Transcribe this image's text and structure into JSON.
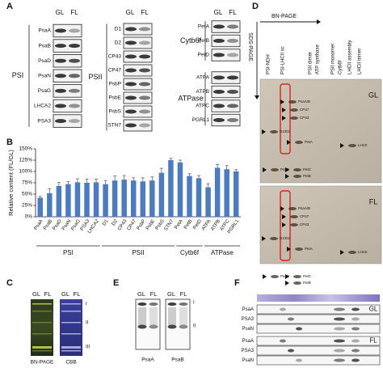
{
  "panel_a": {
    "label": "A",
    "columns": [
      {
        "header": [
          "GL",
          "FL"
        ],
        "groups": [
          {
            "name": "PSI",
            "rows": [
              "PsaA",
              "PsaB",
              "PsaD",
              "PsaN",
              "PsaG",
              "LHCA2",
              "PSA3"
            ]
          }
        ]
      },
      {
        "header": [
          "GL",
          "FL"
        ],
        "groups": [
          {
            "name": "PSII",
            "rows": [
              "D1",
              "D2",
              "CP43",
              "CP47",
              "PsbP",
              "PsbE",
              "PsbS",
              "STN7"
            ]
          }
        ]
      },
      {
        "header": [
          "GL",
          "FL"
        ],
        "groups": [
          {
            "name": "Cytb6f",
            "rows": [
              "PetA",
              "PetB",
              "PetD"
            ]
          },
          {
            "name": "ATPase",
            "rows": [
              "ATPA",
              "ATPB",
              "ATPC",
              "PGRL1"
            ]
          }
        ]
      }
    ]
  },
  "chart_data": {
    "type": "bar",
    "panel_label": "B",
    "y_label": "Relative content (FL/GL)",
    "categories": [
      "PsaA",
      "PsaB",
      "PsaD",
      "PsaN",
      "PsaG",
      "PSA3",
      "LHCA2",
      "D1",
      "D2",
      "CP43",
      "CP47",
      "PsbP",
      "PsbE",
      "PsbS",
      "STN7",
      "PetA",
      "PetB",
      "PetD",
      "ATPA",
      "ATPB",
      "ATPC",
      "PGRL1"
    ],
    "values": [
      42,
      52,
      68,
      72,
      76,
      75,
      76,
      72,
      80,
      82,
      80,
      78,
      80,
      97,
      125,
      120,
      90,
      85,
      65,
      108,
      105,
      100
    ],
    "errors": [
      3,
      10,
      8,
      6,
      8,
      8,
      7,
      8,
      10,
      9,
      6,
      8,
      8,
      10,
      4,
      5,
      5,
      6,
      8,
      7,
      8,
      4
    ],
    "color": "#4a7bc4",
    "ylim": [
      0,
      150
    ],
    "yticks": [
      {
        "value": 0,
        "label": "0%"
      },
      {
        "value": 25,
        "label": "25%"
      },
      {
        "value": 50,
        "label": "50%"
      },
      {
        "value": 75,
        "label": "75%"
      },
      {
        "value": 100,
        "label": "100%"
      },
      {
        "value": 125,
        "label": "125%"
      },
      {
        "value": 150,
        "label": "150%"
      }
    ],
    "groups": [
      "PSI",
      "PSII",
      "Cytb6f",
      "ATPase"
    ]
  },
  "panel_c": {
    "label": "C",
    "lanes": [
      {
        "header": [
          "GL",
          "FL"
        ],
        "caption": "BN-PAGE"
      },
      {
        "header": [
          "GL",
          "FL"
        ],
        "caption": "CBB"
      }
    ],
    "bands": [
      "I",
      "II",
      "III"
    ]
  },
  "panel_d": {
    "label": "D",
    "x_axis": "BN-PAGE",
    "y_axis": "SDS-PAGE",
    "complexes": [
      "PSI-NDH",
      "PSI-LHCII sc",
      "PSII dimer",
      "ATP synthase",
      "PSII monomer",
      "Cytb6f",
      "LHCII assembly",
      "LHCII trimer"
    ],
    "gels": [
      {
        "name": "GL",
        "spots": [
          "PsaA/B",
          "CP47",
          "CP43",
          "D1/D2",
          "PetA",
          "PsaD",
          "PetC",
          "PetB",
          "LHCII"
        ]
      },
      {
        "name": "FL",
        "spots": [
          "PsaA/B",
          "CP47",
          "CP43",
          "D1/D2",
          "PetA",
          "PsaD",
          "PetC",
          "PetB",
          "LHCII"
        ]
      }
    ]
  },
  "panel_e": {
    "label": "E",
    "blots": [
      {
        "header": [
          "GL",
          "FL"
        ],
        "caption": "PsaA"
      },
      {
        "header": [
          "GL",
          "FL"
        ],
        "caption": "PsaB"
      }
    ],
    "bands": [
      "I",
      "II"
    ]
  },
  "panel_f": {
    "label": "F",
    "blocks": [
      {
        "name": "GL",
        "rows": [
          "PsaA",
          "PSA3",
          "PsaN"
        ]
      },
      {
        "name": "FL",
        "rows": [
          "PsaA",
          "PSA3",
          "PsaN"
        ]
      }
    ]
  }
}
